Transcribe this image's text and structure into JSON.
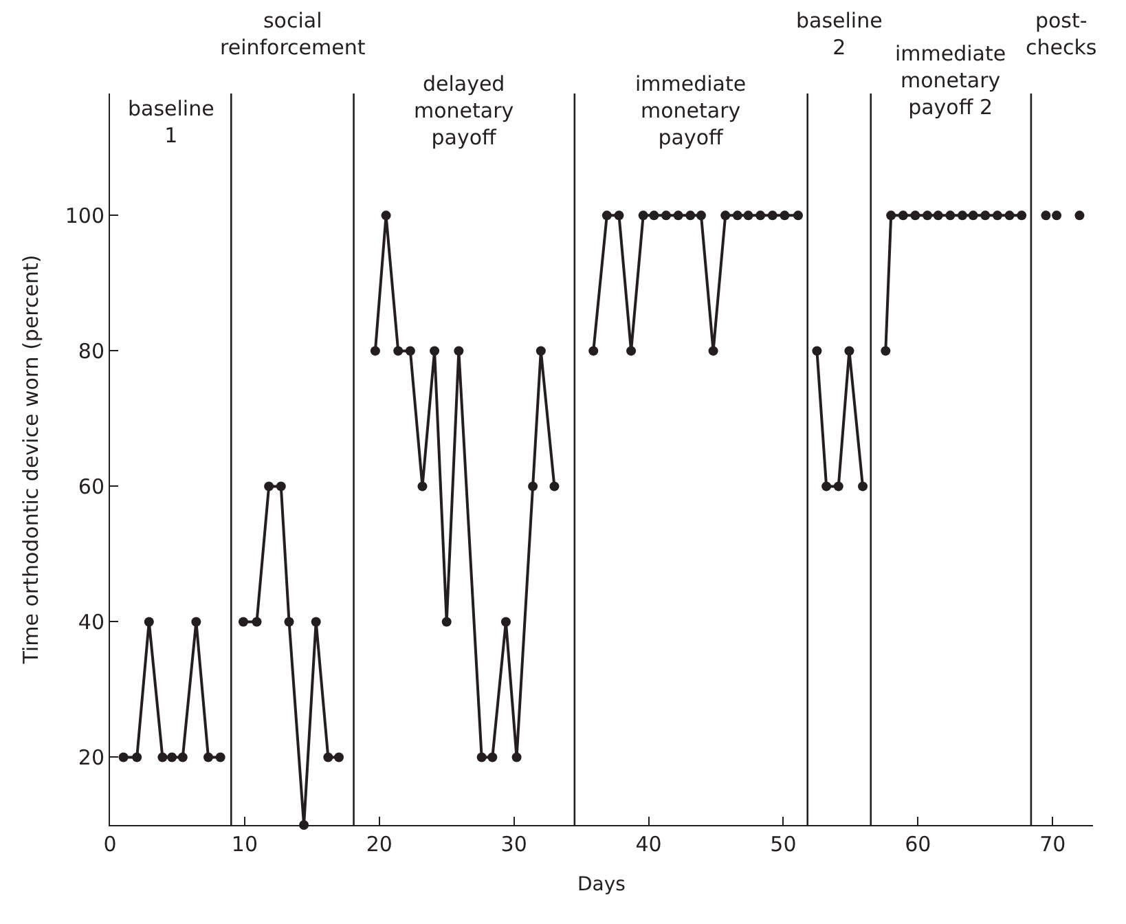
{
  "chart_data": {
    "type": "line",
    "xlabel": "Days",
    "ylabel": "Time orthodontic device worn (percent)",
    "xlim": [
      0,
      73
    ],
    "xticks": [
      0,
      10,
      20,
      30,
      40,
      50,
      60,
      70
    ],
    "ylim": [
      10,
      118
    ],
    "yticks": [
      20,
      40,
      60,
      80,
      100
    ],
    "marker": "circle",
    "line_style": "solid",
    "series": [
      {
        "color": "#231f20",
        "x": [
          1.0,
          2.0,
          2.9,
          3.9,
          4.6,
          5.4,
          6.4,
          7.3,
          8.2
        ],
        "values": [
          20,
          20,
          40,
          20,
          20,
          20,
          40,
          20,
          20
        ]
      },
      {
        "color": "#231f20",
        "x": [
          9.9,
          10.9,
          11.8,
          12.7,
          13.3,
          14.4,
          15.3,
          16.2,
          17.0
        ],
        "values": [
          40,
          40,
          60,
          60,
          40,
          10,
          40,
          20,
          20
        ]
      },
      {
        "color": "#231f20",
        "x": [
          19.7,
          20.5,
          21.4,
          22.3,
          23.2,
          24.1,
          25.0,
          25.9,
          27.6,
          28.4,
          29.4,
          30.2,
          31.4,
          32.0,
          33.0
        ],
        "values": [
          80,
          100,
          80,
          80,
          60,
          80,
          40,
          80,
          20,
          20,
          40,
          20,
          60,
          80,
          60
        ]
      },
      {
        "color": "#231f20",
        "x": [
          35.9,
          36.9,
          37.8,
          38.7,
          39.6,
          40.4,
          41.3,
          42.2,
          43.1,
          43.9,
          44.8,
          45.7,
          46.6,
          47.4,
          48.3,
          49.2,
          50.1,
          51.1
        ],
        "values": [
          80,
          100,
          100,
          80,
          100,
          100,
          100,
          100,
          100,
          100,
          80,
          100,
          100,
          100,
          100,
          100,
          100,
          100
        ]
      },
      {
        "color": "#231f20",
        "x": [
          52.5,
          53.2,
          54.1,
          54.9,
          55.9
        ],
        "values": [
          80,
          60,
          60,
          80,
          60
        ]
      },
      {
        "color": "#231f20",
        "x": [
          57.6,
          58.0,
          58.9,
          59.8,
          60.7,
          61.5,
          62.4,
          63.3,
          64.1,
          65.0,
          65.9,
          66.8,
          67.7
        ],
        "values": [
          80,
          100,
          100,
          100,
          100,
          100,
          100,
          100,
          100,
          100,
          100,
          100,
          100
        ]
      },
      {
        "type": "scatter",
        "color": "#231f20",
        "x": [
          69.5,
          70.3,
          72.0
        ],
        "values": [
          100,
          100,
          100
        ]
      }
    ],
    "ref_lines": [
      {
        "axis": "x",
        "value": 9.0,
        "color": "#231f20"
      },
      {
        "axis": "x",
        "value": 18.1,
        "color": "#231f20"
      },
      {
        "axis": "x",
        "value": 34.5,
        "color": "#231f20"
      },
      {
        "axis": "x",
        "value": 51.8,
        "color": "#231f20"
      },
      {
        "axis": "x",
        "value": 56.5,
        "color": "#231f20"
      },
      {
        "axis": "x",
        "value": 68.4,
        "color": "#231f20"
      }
    ],
    "annotations": [
      "baseline\n1",
      "social\nreinforcement",
      "delayed\nmonetary\npayoff",
      "immediate\nmonetary\npayoff",
      "baseline\n2",
      "immediate\nmonetary\npayoff 2",
      "post-\nchecks"
    ]
  }
}
